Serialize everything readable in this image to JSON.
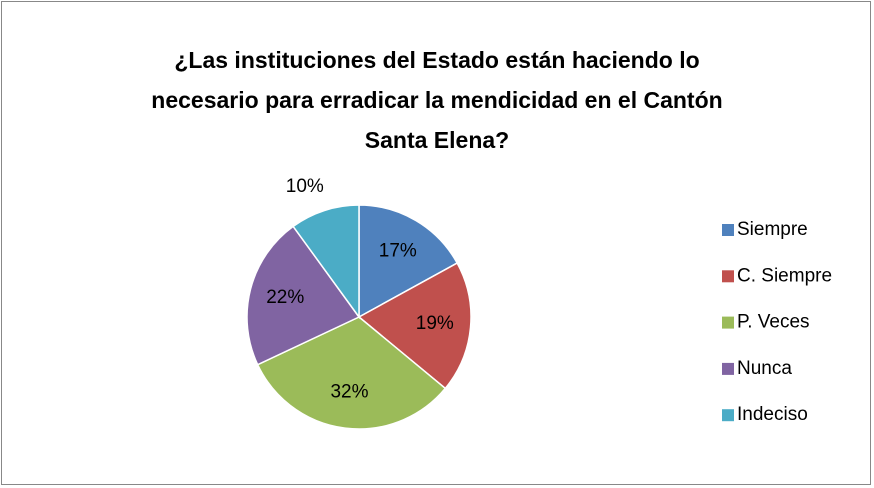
{
  "chart_data": {
    "type": "pie",
    "title": "¿Las instituciones del Estado están haciendo lo necesario para erradicar la mendicidad en el Cantón Santa Elena?",
    "categories": [
      "Siempre",
      "C. Siempre",
      "P. Veces",
      "Nunca",
      "Indeciso"
    ],
    "values": [
      17,
      19,
      32,
      22,
      10
    ],
    "value_labels": [
      "17%",
      "19%",
      "32%",
      "22%",
      "10%"
    ],
    "colors": [
      "#4f81bd",
      "#c0504d",
      "#9bbb59",
      "#8064a2",
      "#4bacc6"
    ],
    "legend": "right"
  }
}
